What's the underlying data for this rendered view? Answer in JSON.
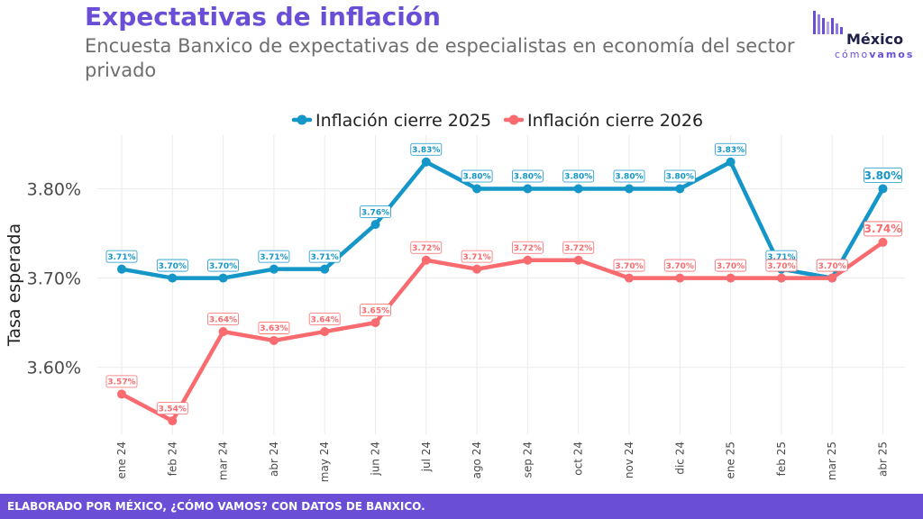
{
  "header": {
    "title": "Expectativas de inflación",
    "subtitle": "Encuesta Banxico de expectativas de especialistas en economía del sector privado"
  },
  "logo": {
    "word1": "México",
    "word2_a": "cómo",
    "word2_b": "vamos"
  },
  "footer": {
    "text": "ELABORADO POR MÉXICO, ¿CÓMO VAMOS? CON DATOS DE BANXICO."
  },
  "chart_data": {
    "type": "line",
    "ylabel": "Tasa esperada",
    "xlabel": "",
    "ylim": [
      3.525,
      3.86
    ],
    "yticks": [
      3.6,
      3.7,
      3.8
    ],
    "ytick_labels": [
      "3.60%",
      "3.70%",
      "3.80%"
    ],
    "grid": true,
    "legend_position": "top-center",
    "categories": [
      "ene 24",
      "feb 24",
      "mar 24",
      "abr 24",
      "may 24",
      "jun 24",
      "jul 24",
      "ago 24",
      "sep 24",
      "oct 24",
      "nov 24",
      "dic 24",
      "ene 25",
      "feb 25",
      "mar 25",
      "abr 25"
    ],
    "series": [
      {
        "name": "Inflación cierre 2025",
        "color": "#1496c8",
        "values": [
          3.71,
          3.7,
          3.7,
          3.71,
          3.71,
          3.76,
          3.83,
          3.8,
          3.8,
          3.8,
          3.8,
          3.8,
          3.83,
          3.71,
          3.7,
          3.8
        ],
        "labels": [
          "3.71%",
          "3.70%",
          "3.70%",
          "3.71%",
          "3.71%",
          "3.76%",
          "3.83%",
          "3.80%",
          "3.80%",
          "3.80%",
          "3.80%",
          "3.80%",
          "3.83%",
          "3.71%",
          "3.70%",
          "3.80%"
        ]
      },
      {
        "name": "Inflación cierre 2026",
        "color": "#f96b6e",
        "values": [
          3.57,
          3.54,
          3.64,
          3.63,
          3.64,
          3.65,
          3.72,
          3.71,
          3.72,
          3.72,
          3.7,
          3.7,
          3.7,
          3.7,
          3.7,
          3.74
        ],
        "labels": [
          "3.57%",
          "3.54%",
          "3.64%",
          "3.63%",
          "3.64%",
          "3.65%",
          "3.72%",
          "3.71%",
          "3.72%",
          "3.72%",
          "3.70%",
          "3.70%",
          "3.70%",
          "3.70%",
          "3.70%",
          "3.74%"
        ]
      }
    ]
  }
}
